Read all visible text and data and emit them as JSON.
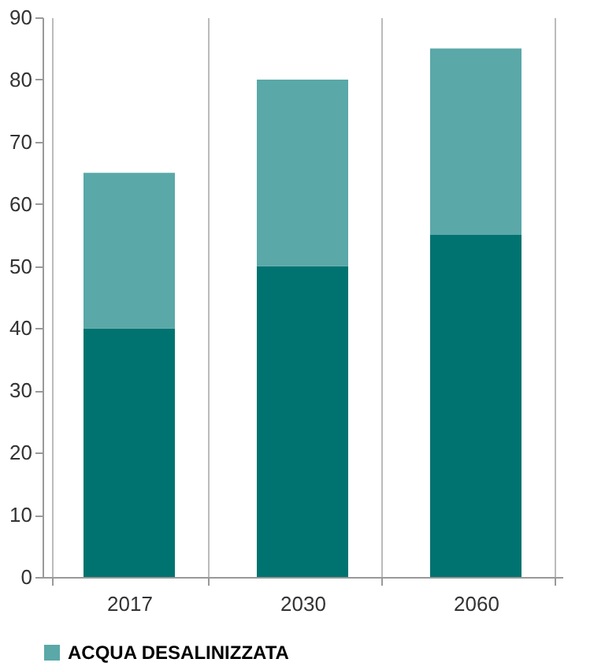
{
  "chart_data": {
    "type": "bar",
    "stacked": true,
    "categories": [
      "2017",
      "2030",
      "2060"
    ],
    "series": [
      {
        "color": "#007370",
        "values": [
          40,
          50,
          55
        ]
      },
      {
        "name": "ACQUA DESALINIZZATA",
        "color": "#5aa8a8",
        "values": [
          25,
          30,
          30
        ]
      }
    ],
    "ylim": [
      0,
      90
    ],
    "yticks": [
      0,
      10,
      20,
      30,
      40,
      50,
      60,
      70,
      80,
      90
    ],
    "grid": "x",
    "legend": "bottom"
  }
}
